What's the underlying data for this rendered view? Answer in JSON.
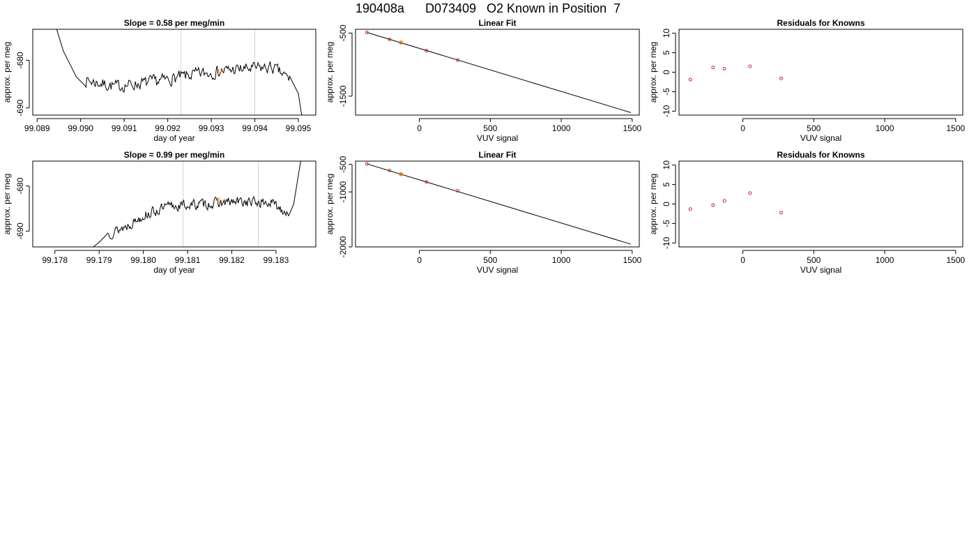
{
  "page": {
    "title": "190408a      D073409   O2 Known in Position  7"
  },
  "colors": {
    "trace": "#000000",
    "vline": "#d3d3d3",
    "fit_line": "#000000",
    "point_red": "#cd2626",
    "point_orange": "#ff8c00",
    "frame": "#000000"
  },
  "chart_data": [
    {
      "type": "line",
      "title": "Slope =  0.58  per meg/min",
      "xlabel": "day of year",
      "ylabel": "approx. per meg",
      "xlim": [
        99.0889,
        99.0954
      ],
      "ylim": [
        -691.5,
        -673.5
      ],
      "xticks": [
        99.089,
        99.09,
        99.091,
        99.092,
        99.093,
        99.094,
        99.095
      ],
      "xtick_labels": [
        "99.089",
        "99.090",
        "99.091",
        "99.092",
        "99.093",
        "99.094",
        "99.095"
      ],
      "yticks": [
        -690,
        -680
      ],
      "ytick_labels": [
        "-690",
        "-680"
      ],
      "vlines": [
        99.0923,
        99.094
      ],
      "marker": {
        "x": 99.0932,
        "y": -682.2
      },
      "seed": 7,
      "trace_start": [
        99.0901,
        -687.0
      ],
      "trace_end": [
        99.0948,
        -686.0
      ],
      "lead_in": [
        [
          99.0894,
          -672.0
        ],
        [
          99.0896,
          -678.0
        ],
        [
          99.0899,
          -683.5
        ]
      ],
      "lead_out": [
        [
          99.095,
          -687.0
        ],
        [
          99.0951,
          -693.0
        ]
      ],
      "trend": [
        [
          99.09,
          -684.0
        ],
        [
          99.0908,
          -685.5
        ],
        [
          99.0917,
          -684.5
        ],
        [
          99.0926,
          -683.0
        ],
        [
          99.0935,
          -682.0
        ],
        [
          99.0944,
          -681.5
        ],
        [
          99.0948,
          -684.0
        ]
      ],
      "noise_amp": 1.8,
      "grid": false
    },
    {
      "type": "scatter",
      "title": "Linear Fit",
      "xlabel": "VUV signal",
      "ylabel": "approx. per meg",
      "xlim": [
        -450,
        1550
      ],
      "ylim": [
        -1800,
        -440
      ],
      "xticks": [
        0,
        500,
        1000,
        1500
      ],
      "xtick_labels": [
        "0",
        "500",
        "1000",
        "1500"
      ],
      "yticks": [
        -1500,
        -500
      ],
      "ytick_labels": [
        "-1500",
        "-500"
      ],
      "fit_line": [
        [
          -370,
          -490
        ],
        [
          1490,
          -1760
        ]
      ],
      "points_red": [
        [
          -370,
          -490
        ],
        [
          -210,
          -600
        ],
        [
          -130,
          -650
        ],
        [
          50,
          -778
        ],
        [
          270,
          -928
        ]
      ],
      "points_orange": [
        [
          -130,
          -650
        ]
      ],
      "grid": false
    },
    {
      "type": "scatter",
      "title": "Residuals for Knowns",
      "xlabel": "VUV signal",
      "ylabel": "approx. per meg",
      "xlim": [
        -450,
        1550
      ],
      "ylim": [
        -11,
        11
      ],
      "xticks": [
        0,
        500,
        1000,
        1500
      ],
      "xtick_labels": [
        "0",
        "500",
        "1000",
        "1500"
      ],
      "yticks": [
        -10,
        -5,
        0,
        5,
        10
      ],
      "ytick_labels": [
        "-10",
        "-5",
        "0",
        "5",
        "10"
      ],
      "points_red": [
        [
          -370,
          -1.9
        ],
        [
          -210,
          1.2
        ],
        [
          -130,
          0.9
        ],
        [
          50,
          1.5
        ],
        [
          270,
          -1.6
        ]
      ],
      "grid": false
    },
    {
      "type": "line",
      "title": "Slope =  0.99  per meg/min",
      "xlabel": "day of year",
      "ylabel": "approx. per meg",
      "xlim": [
        99.1775,
        99.1839
      ],
      "ylim": [
        -693.5,
        -674.5
      ],
      "xticks": [
        99.178,
        99.179,
        99.18,
        99.181,
        99.182,
        99.183
      ],
      "xtick_labels": [
        "99.178",
        "99.179",
        "99.180",
        "99.181",
        "99.182",
        "99.183"
      ],
      "yticks": [
        -690,
        -680
      ],
      "ytick_labels": [
        "-690",
        "-680"
      ],
      "vlines": [
        99.1809,
        99.1826
      ],
      "marker": {
        "x": 99.1817,
        "y": -683.0
      },
      "seed": 13,
      "trace_start": [
        99.1792,
        -691.0
      ],
      "trace_end": [
        99.1833,
        -686.0
      ],
      "lead_in": [
        [
          99.1788,
          -694.0
        ],
        [
          99.179,
          -692.5
        ]
      ],
      "lead_out": [
        [
          99.1834,
          -684.0
        ],
        [
          99.1835,
          -678.0
        ],
        [
          99.1836,
          -672.0
        ]
      ],
      "trend": [
        [
          99.1791,
          -691.0
        ],
        [
          99.1796,
          -689.0
        ],
        [
          99.18,
          -686.5
        ],
        [
          99.1806,
          -684.5
        ],
        [
          99.1814,
          -684.0
        ],
        [
          99.1822,
          -683.5
        ],
        [
          99.1829,
          -683.8
        ],
        [
          99.1833,
          -686.0
        ]
      ],
      "noise_amp": 1.6,
      "grid": false
    },
    {
      "type": "scatter",
      "title": "Linear Fit",
      "xlabel": "VUV signal",
      "ylabel": "approx. per meg",
      "xlim": [
        -450,
        1550
      ],
      "ylim": [
        -2000,
        -440
      ],
      "xticks": [
        0,
        500,
        1000,
        1500
      ],
      "xtick_labels": [
        "0",
        "500",
        "1000",
        "1500"
      ],
      "yticks": [
        -2000,
        -1000,
        -500
      ],
      "ytick_labels": [
        "-2000",
        "-1000",
        "-500"
      ],
      "fit_line": [
        [
          -370,
          -490
        ],
        [
          1490,
          -1950
        ]
      ],
      "points_red": [
        [
          -370,
          -490
        ],
        [
          -210,
          -610
        ],
        [
          -130,
          -676
        ],
        [
          50,
          -819
        ],
        [
          270,
          -979
        ]
      ],
      "points_orange": [
        [
          -130,
          -676
        ]
      ],
      "grid": false
    },
    {
      "type": "scatter",
      "title": "Residuals for Knowns",
      "xlabel": "VUV signal",
      "ylabel": "approx. per meg",
      "xlim": [
        -450,
        1550
      ],
      "ylim": [
        -11,
        11
      ],
      "xticks": [
        0,
        500,
        1000,
        1500
      ],
      "xtick_labels": [
        "0",
        "500",
        "1000",
        "1500"
      ],
      "yticks": [
        -10,
        -5,
        0,
        5,
        10
      ],
      "ytick_labels": [
        "-10",
        "-5",
        "0",
        "5",
        "10"
      ],
      "points_red": [
        [
          -370,
          -1.3
        ],
        [
          -210,
          -0.3
        ],
        [
          -130,
          0.8
        ],
        [
          50,
          2.8
        ],
        [
          270,
          -2.2
        ]
      ],
      "grid": false
    }
  ]
}
